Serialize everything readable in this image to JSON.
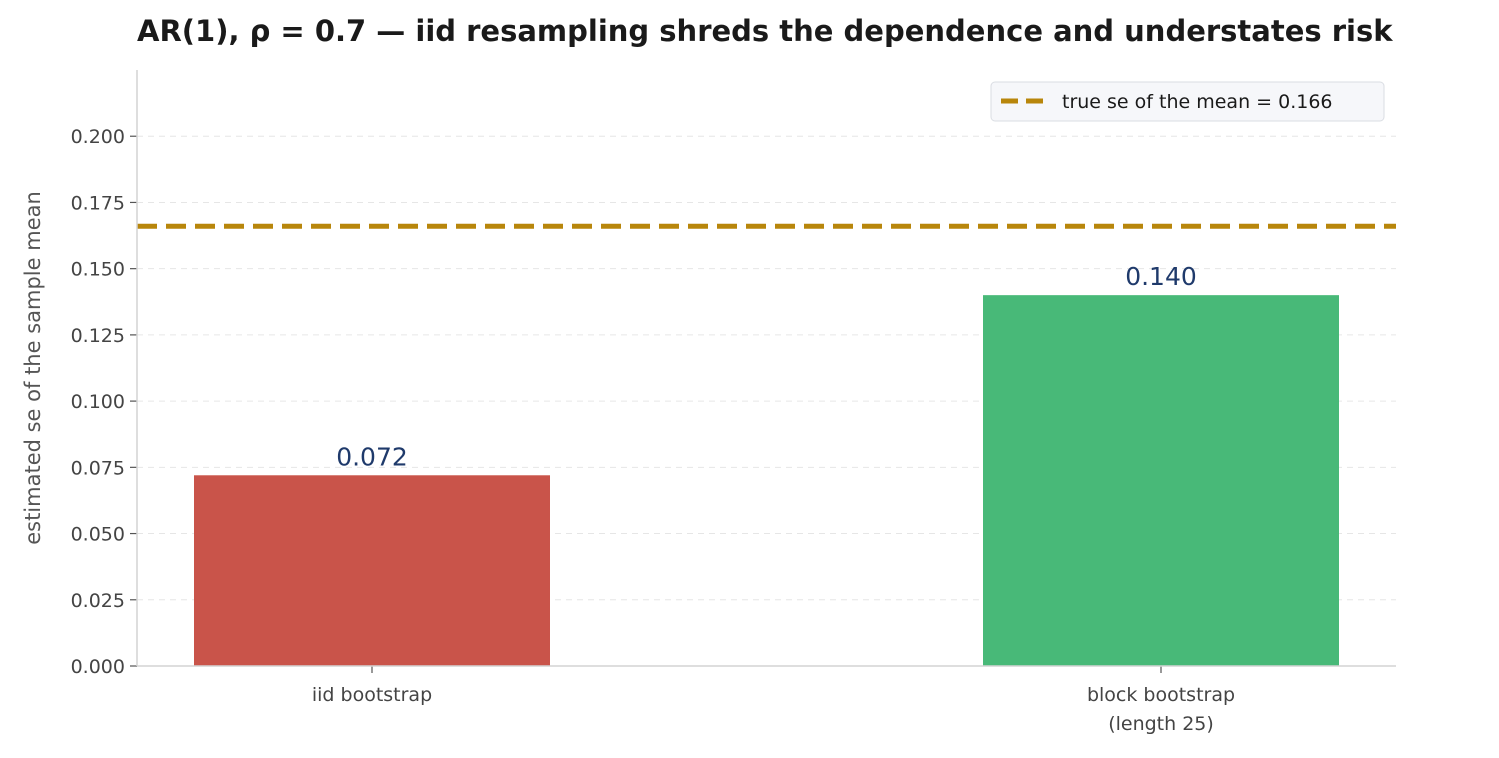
{
  "chart_data": {
    "type": "bar",
    "title": "AR(1), ρ = 0.7 — iid resampling shreds the dependence and understates risk",
    "xlabel": "",
    "ylabel": "estimated se of the sample mean",
    "ylim": [
      0,
      0.225
    ],
    "yticks": [
      "0.000",
      "0.025",
      "0.050",
      "0.075",
      "0.100",
      "0.125",
      "0.150",
      "0.175",
      "0.200"
    ],
    "categories": [
      [
        "iid bootstrap"
      ],
      [
        "block bootstrap",
        "(length 25)"
      ]
    ],
    "values": [
      0.072,
      0.14
    ],
    "value_labels": [
      "0.072",
      "0.140"
    ],
    "bar_colors": [
      "#c9544a",
      "#48b978"
    ],
    "reference_line": {
      "value": 0.166,
      "label": "true se of the mean = 0.166",
      "color": "#b8860b",
      "style": "dashed"
    },
    "grid": "horizontal-dashed",
    "legend_position": "top-right"
  }
}
